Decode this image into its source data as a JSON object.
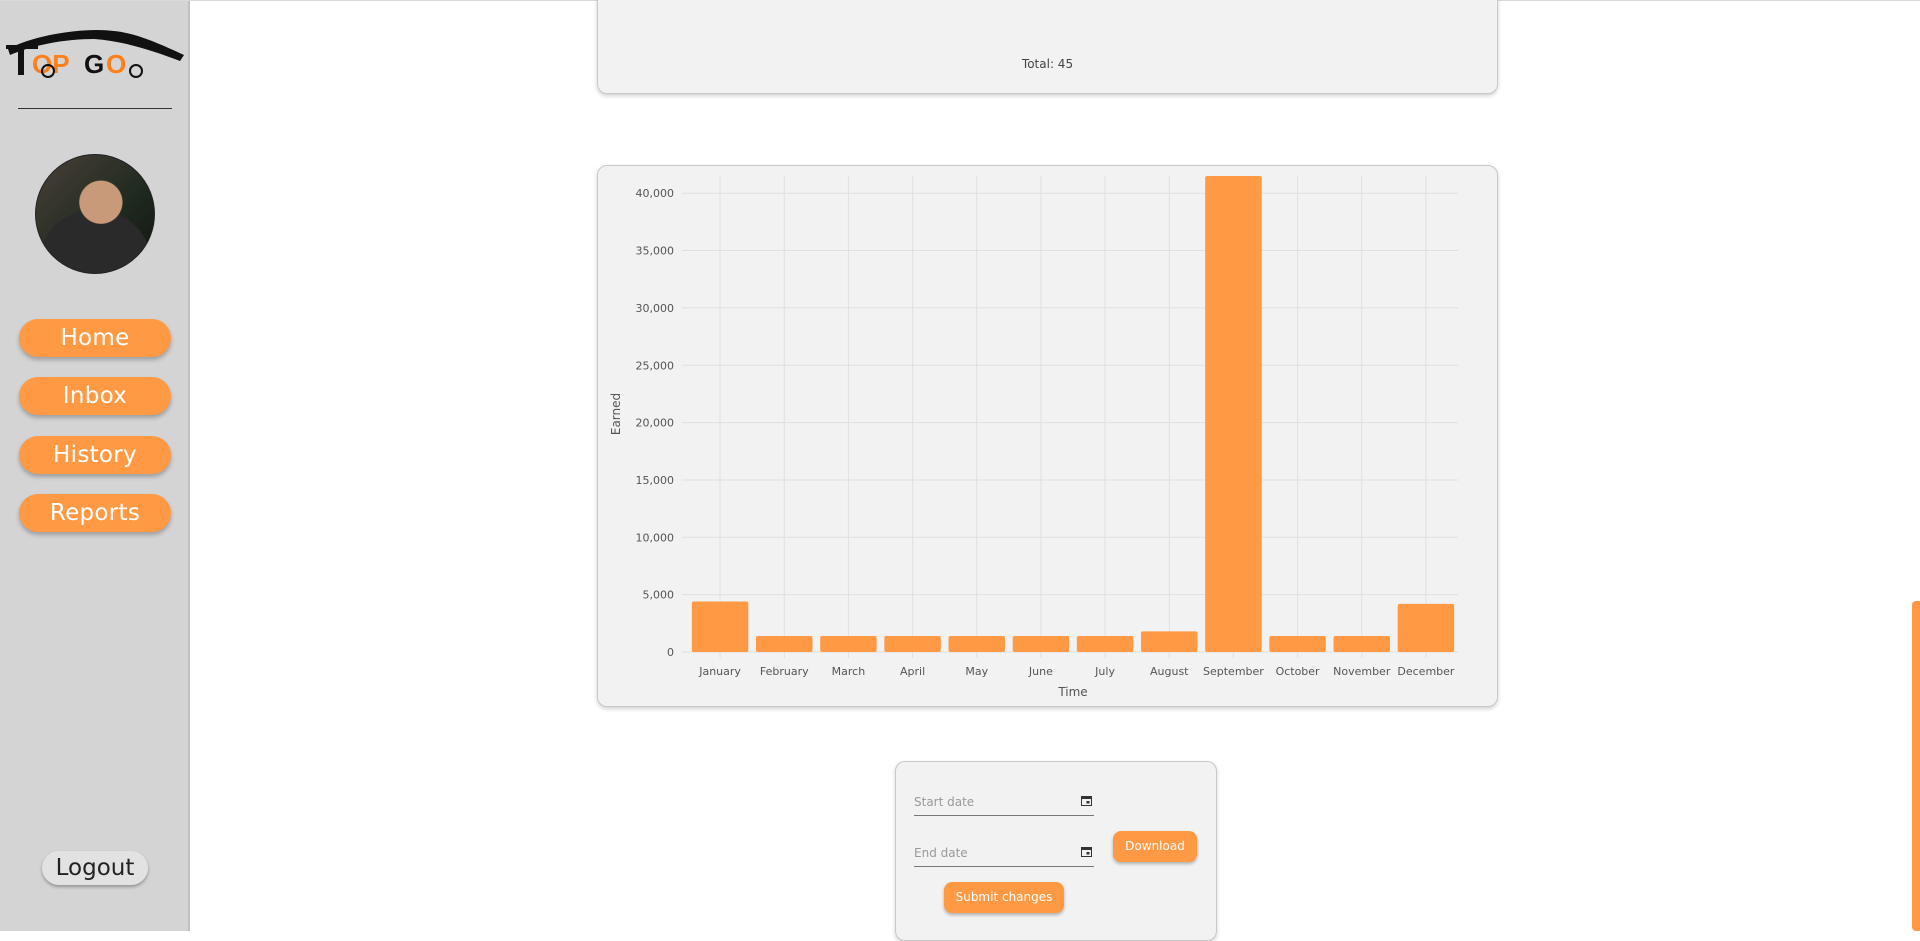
{
  "logo": {
    "brand": "TopGo"
  },
  "sidebar": {
    "nav": [
      {
        "label": "Home"
      },
      {
        "label": "Inbox"
      },
      {
        "label": "History"
      },
      {
        "label": "Reports"
      }
    ],
    "logout_label": "Logout"
  },
  "top_card": {
    "total_text": "Total: 45"
  },
  "chart_data": {
    "type": "bar",
    "categories": [
      "January",
      "February",
      "March",
      "April",
      "May",
      "June",
      "July",
      "August",
      "September",
      "October",
      "November",
      "December"
    ],
    "values": [
      4400,
      1400,
      1400,
      1400,
      1400,
      1400,
      1400,
      1800,
      41500,
      1400,
      1400,
      4200
    ],
    "y_ticks": [
      0,
      5000,
      10000,
      15000,
      20000,
      25000,
      30000,
      35000,
      40000
    ],
    "ylim": [
      0,
      41500
    ],
    "xlabel": "Time",
    "ylabel": "Earned",
    "grid": true,
    "bar_color": "#ff9943"
  },
  "report_form": {
    "start_date_placeholder": "Start date",
    "end_date_placeholder": "End date",
    "download_label": "Download",
    "submit_label": "Submit changes"
  },
  "colors": {
    "accent": "#ff9943",
    "sidebar_bg": "#d4d4d4",
    "card_bg": "#f2f2f2"
  }
}
